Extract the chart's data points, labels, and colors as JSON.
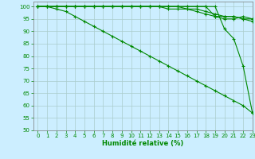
{
  "xlabel": "Humidité relative (%)",
  "bg_color": "#cceeff",
  "grid_color": "#aacccc",
  "line_color": "#008800",
  "xlim": [
    -0.5,
    23
  ],
  "ylim": [
    50,
    102
  ],
  "yticks": [
    50,
    55,
    60,
    65,
    70,
    75,
    80,
    85,
    90,
    95,
    100
  ],
  "xticks": [
    0,
    1,
    2,
    3,
    4,
    5,
    6,
    7,
    8,
    9,
    10,
    11,
    12,
    13,
    14,
    15,
    16,
    17,
    18,
    19,
    20,
    21,
    22,
    23
  ],
  "series": [
    [
      100,
      100,
      100,
      100,
      100,
      100,
      100,
      100,
      100,
      100,
      100,
      100,
      100,
      100,
      100,
      100,
      100,
      100,
      100,
      100,
      91,
      87,
      76,
      57
    ],
    [
      100,
      100,
      100,
      100,
      100,
      100,
      100,
      100,
      100,
      100,
      100,
      100,
      100,
      100,
      100,
      100,
      100,
      100,
      100,
      96,
      95,
      95,
      96,
      95
    ],
    [
      100,
      100,
      100,
      100,
      100,
      100,
      100,
      100,
      100,
      100,
      100,
      100,
      100,
      100,
      100,
      100,
      99,
      98,
      97,
      96,
      96,
      96,
      95,
      95
    ],
    [
      100,
      100,
      100,
      100,
      100,
      100,
      100,
      100,
      100,
      100,
      100,
      100,
      100,
      100,
      99,
      99,
      99,
      99,
      98,
      97,
      96,
      96,
      95,
      94
    ],
    [
      100,
      100,
      99,
      98,
      96,
      94,
      92,
      90,
      88,
      86,
      84,
      82,
      80,
      78,
      76,
      74,
      72,
      70,
      68,
      66,
      64,
      62,
      60,
      57
    ]
  ]
}
